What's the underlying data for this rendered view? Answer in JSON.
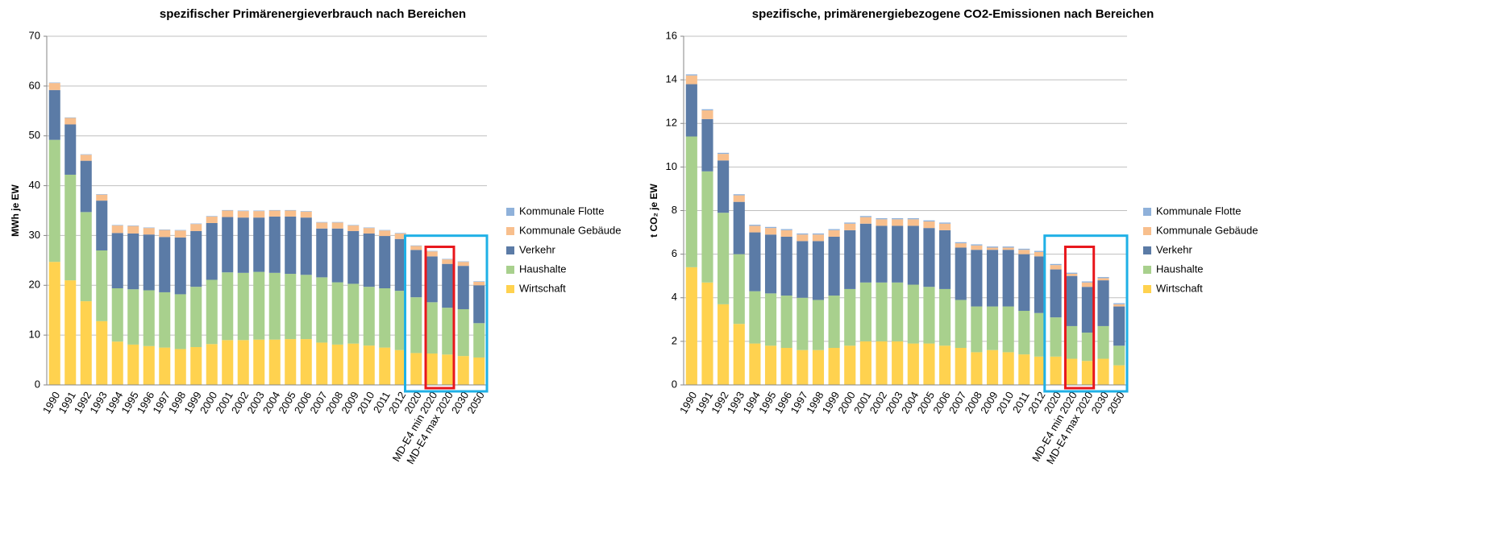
{
  "chart_data": [
    {
      "type": "bar",
      "stacked": true,
      "title": "spezifischer Primärenergieverbrauch nach Bereichen",
      "y_label": "MWh je EW",
      "categories": [
        "1990",
        "1991",
        "1992",
        "1993",
        "1994",
        "1995",
        "1996",
        "1997",
        "1998",
        "1999",
        "2000",
        "2001",
        "2002",
        "2003",
        "2004",
        "2005",
        "2006",
        "2007",
        "2008",
        "2009",
        "2010",
        "2011",
        "2012",
        "2020",
        "MD-E4 min 2020",
        "MD-E4 max 2020",
        "2030",
        "2050"
      ],
      "ylim": [
        0,
        70
      ],
      "yticks": [
        0,
        10,
        20,
        30,
        40,
        50,
        60,
        70
      ],
      "grid": true,
      "series": [
        {
          "name": "Wirtschaft",
          "color": "#ffd24f",
          "values": [
            24.7,
            21,
            16.8,
            12.8,
            8.7,
            8.1,
            7.8,
            7.5,
            7.2,
            7.6,
            8.2,
            9,
            9,
            9.1,
            9.1,
            9.2,
            9.2,
            8.5,
            8.1,
            8.3,
            7.9,
            7.5,
            7,
            6.4,
            6.3,
            6.1,
            5.8,
            5.5
          ]
        },
        {
          "name": "Haushalte",
          "color": "#a8d08d",
          "values": [
            24.5,
            21.2,
            17.9,
            14.2,
            10.7,
            11.1,
            11.2,
            11.1,
            11,
            12.1,
            12.9,
            13.6,
            13.5,
            13.6,
            13.4,
            13.1,
            12.9,
            13.1,
            12.5,
            12,
            11.8,
            11.9,
            11.9,
            11.2,
            10.3,
            9.4,
            9.4,
            6.9
          ]
        },
        {
          "name": "Verkehr",
          "color": "#5b7ba6",
          "values": [
            10,
            10.1,
            10.3,
            10,
            11.1,
            11.2,
            11.2,
            11.1,
            11.4,
            11.2,
            11.4,
            11.1,
            11.1,
            10.9,
            11.3,
            11.5,
            11.5,
            9.8,
            10.8,
            10.6,
            10.7,
            10.5,
            10.4,
            9.5,
            9.2,
            8.8,
            8.7,
            7.6
          ]
        },
        {
          "name": "Kommunale Gebäude",
          "color": "#f8bf8d",
          "values": [
            1.4,
            1.3,
            1.2,
            1.2,
            1.5,
            1.5,
            1.3,
            1.4,
            1.4,
            1.4,
            1.3,
            1.3,
            1.3,
            1.3,
            1.2,
            1.2,
            1.2,
            1.2,
            1.2,
            1.1,
            1.1,
            1.1,
            1.1,
            0.8,
            1,
            0.9,
            0.8,
            0.7
          ]
        },
        {
          "name": "Kommunale Flotte",
          "color": "#8fb1da",
          "values": [
            0.1,
            0.1,
            0.1,
            0.1,
            0.1,
            0.1,
            0.1,
            0.1,
            0.1,
            0.1,
            0.1,
            0.1,
            0.1,
            0.1,
            0.1,
            0.1,
            0.1,
            0.1,
            0.1,
            0.1,
            0.1,
            0.1,
            0.1,
            0.1,
            0.1,
            0.1,
            0.1,
            0.1
          ]
        }
      ]
    },
    {
      "type": "bar",
      "stacked": true,
      "title": "spezifische, primärenergiebezogene CO2-Emissionen nach Bereichen",
      "y_label": "t CO₂ je EW",
      "categories": [
        "1990",
        "1991",
        "1992",
        "1993",
        "1994",
        "1995",
        "1996",
        "1997",
        "1998",
        "1999",
        "2000",
        "2001",
        "2002",
        "2003",
        "2004",
        "2005",
        "2006",
        "2007",
        "2008",
        "2009",
        "2010",
        "2011",
        "2012",
        "2020",
        "MD-E4 min 2020",
        "MD-E4 max 2020",
        "2030",
        "2050"
      ],
      "ylim": [
        0,
        16
      ],
      "yticks": [
        0,
        2,
        4,
        6,
        8,
        10,
        12,
        14,
        16
      ],
      "grid": true,
      "series": [
        {
          "name": "Wirtschaft",
          "color": "#ffd24f",
          "values": [
            5.4,
            4.7,
            3.7,
            2.8,
            1.9,
            1.8,
            1.7,
            1.6,
            1.6,
            1.7,
            1.8,
            2,
            2,
            2,
            1.9,
            1.9,
            1.8,
            1.7,
            1.5,
            1.6,
            1.5,
            1.4,
            1.3,
            1.3,
            1.2,
            1.1,
            1.2,
            0.9
          ]
        },
        {
          "name": "Haushalte",
          "color": "#a8d08d",
          "values": [
            6,
            5.1,
            4.2,
            3.2,
            2.4,
            2.4,
            2.4,
            2.4,
            2.3,
            2.4,
            2.6,
            2.7,
            2.7,
            2.7,
            2.7,
            2.6,
            2.6,
            2.2,
            2.1,
            2,
            2.1,
            2,
            2,
            1.8,
            1.5,
            1.3,
            1.5,
            0.9
          ]
        },
        {
          "name": "Verkehr",
          "color": "#5b7ba6",
          "values": [
            2.4,
            2.4,
            2.4,
            2.4,
            2.7,
            2.7,
            2.7,
            2.6,
            2.7,
            2.7,
            2.7,
            2.7,
            2.6,
            2.6,
            2.7,
            2.7,
            2.7,
            2.4,
            2.6,
            2.6,
            2.6,
            2.6,
            2.6,
            2.2,
            2.3,
            2.1,
            2.1,
            1.8
          ]
        },
        {
          "name": "Kommunale Gebäude",
          "color": "#f8bf8d",
          "values": [
            0.4,
            0.4,
            0.3,
            0.3,
            0.3,
            0.3,
            0.3,
            0.3,
            0.3,
            0.3,
            0.3,
            0.3,
            0.3,
            0.3,
            0.3,
            0.3,
            0.3,
            0.2,
            0.2,
            0.1,
            0.1,
            0.2,
            0.2,
            0.2,
            0.1,
            0.2,
            0.1,
            0.1
          ]
        },
        {
          "name": "Kommunale Flotte",
          "color": "#8fb1da",
          "values": [
            0.05,
            0.05,
            0.05,
            0.05,
            0.05,
            0.05,
            0.05,
            0.05,
            0.05,
            0.05,
            0.05,
            0.05,
            0.05,
            0.05,
            0.05,
            0.05,
            0.05,
            0.05,
            0.05,
            0.05,
            0.05,
            0.05,
            0.05,
            0.05,
            0.05,
            0.05,
            0.05,
            0.05
          ]
        }
      ]
    }
  ]
}
